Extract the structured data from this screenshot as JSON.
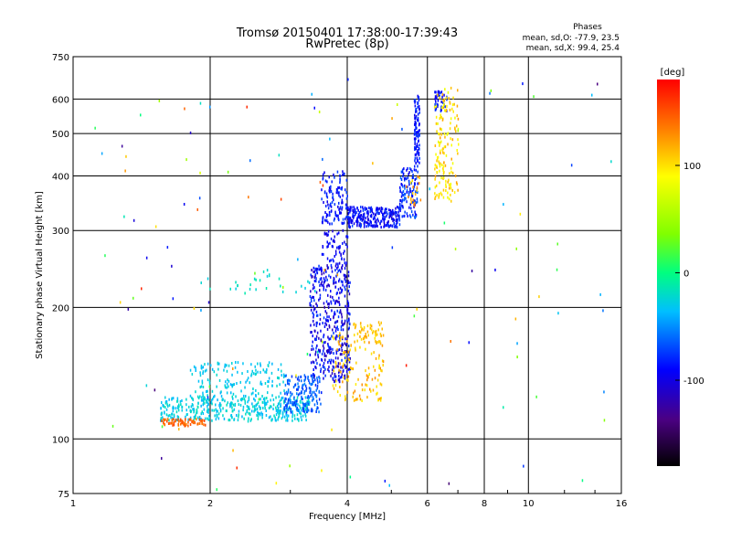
{
  "chart_data": {
    "type": "scatter",
    "title": "Tromsø 20150401 17:38:00-17:39:43",
    "subtitle": "RwPretec (8p)",
    "phases": {
      "heading": "Phases",
      "line_o": "mean, sd,O: -77.9, 23.5",
      "line_x": "mean, sd,X:  99.4, 25.4"
    },
    "xlabel": "Frequency [MHz]",
    "ylabel": "Stationary phase Virtual Height [km]",
    "x_scale": "log",
    "y_scale": "log",
    "xlim": [
      1,
      16
    ],
    "ylim": [
      75,
      750
    ],
    "xticks": [
      1,
      2,
      4,
      6,
      8,
      10,
      16
    ],
    "xtick_labels": [
      "1",
      "2",
      "4",
      "6",
      "8",
      "10",
      "16"
    ],
    "yticks": [
      75,
      100,
      200,
      300,
      400,
      500,
      600,
      750
    ],
    "ytick_labels": [
      "75",
      "100",
      "200",
      "300",
      "400",
      "500",
      "600",
      "750"
    ],
    "grid": true,
    "colorbar": {
      "label": "[deg]",
      "range": [
        -180,
        180
      ],
      "ticks": [
        100,
        0,
        -100
      ],
      "tick_labels": [
        "100",
        "0",
        "-100"
      ]
    },
    "series": [
      {
        "mode": "O",
        "phase_deg": -100,
        "clusters": [
          {
            "x_range": [
              1.55,
              3.3
            ],
            "y_range": [
              110,
              125
            ],
            "phase_range": [
              -40,
              -15
            ],
            "count": 420
          },
          {
            "x_range": [
              1.8,
              2.9
            ],
            "y_range": [
              125,
              150
            ],
            "phase_range": [
              -40,
              -20
            ],
            "count": 150
          },
          {
            "x_range": [
              2.9,
              3.5
            ],
            "y_range": [
              115,
              140
            ],
            "phase_range": [
              -80,
              -50
            ],
            "count": 170
          },
          {
            "x_range": [
              3.3,
              4.05
            ],
            "y_range": [
              135,
              250
            ],
            "phase_range": [
              -120,
              -70
            ],
            "count": 430
          },
          {
            "x_range": [
              3.5,
              4.0
            ],
            "y_range": [
              250,
              300
            ],
            "phase_range": [
              -110,
              -80
            ],
            "count": 60
          },
          {
            "x_range": [
              3.5,
              4.0
            ],
            "y_range": [
              310,
              410
            ],
            "phase_range": [
              -100,
              -70
            ],
            "count": 120
          },
          {
            "x_range": [
              4.0,
              5.2
            ],
            "y_range": [
              305,
              340
            ],
            "phase_range": [
              -110,
              -70
            ],
            "count": 260
          },
          {
            "x_range": [
              5.2,
              5.7
            ],
            "y_range": [
              320,
              420
            ],
            "phase_range": [
              -100,
              -60
            ],
            "count": 120
          },
          {
            "x_range": [
              5.6,
              5.75
            ],
            "y_range": [
              420,
              610
            ],
            "phase_range": [
              -100,
              -70
            ],
            "count": 100
          },
          {
            "x_range": [
              6.2,
              6.6
            ],
            "y_range": [
              560,
              625
            ],
            "phase_range": [
              -100,
              -70
            ],
            "count": 40
          },
          {
            "x_range": [
              1.9,
              3.4
            ],
            "y_range": [
              215,
              245
            ],
            "phase_range": [
              -30,
              -10
            ],
            "count": 30
          }
        ]
      },
      {
        "mode": "X",
        "phase_deg": 100,
        "clusters": [
          {
            "x_range": [
              1.55,
              1.95
            ],
            "y_range": [
              107,
              111
            ],
            "phase_range": [
              130,
              155
            ],
            "count": 70
          },
          {
            "x_range": [
              3.7,
              4.8
            ],
            "y_range": [
              122,
              175
            ],
            "phase_range": [
              95,
              130
            ],
            "count": 130
          },
          {
            "x_range": [
              4.1,
              4.8
            ],
            "y_range": [
              165,
              185
            ],
            "phase_range": [
              100,
              120
            ],
            "count": 50
          },
          {
            "x_range": [
              6.2,
              7.0
            ],
            "y_range": [
              350,
              640
            ],
            "phase_range": [
              80,
              125
            ],
            "count": 160
          },
          {
            "x_range": [
              5.3,
              5.8
            ],
            "y_range": [
              340,
              400
            ],
            "phase_range": [
              95,
              140
            ],
            "count": 20
          }
        ]
      },
      {
        "mode": "noise",
        "clusters": [
          {
            "x_range": [
              1.1,
              15.5
            ],
            "y_range": [
              76,
              700
            ],
            "phase_range": [
              -150,
              170
            ],
            "count": 120
          }
        ]
      }
    ]
  }
}
